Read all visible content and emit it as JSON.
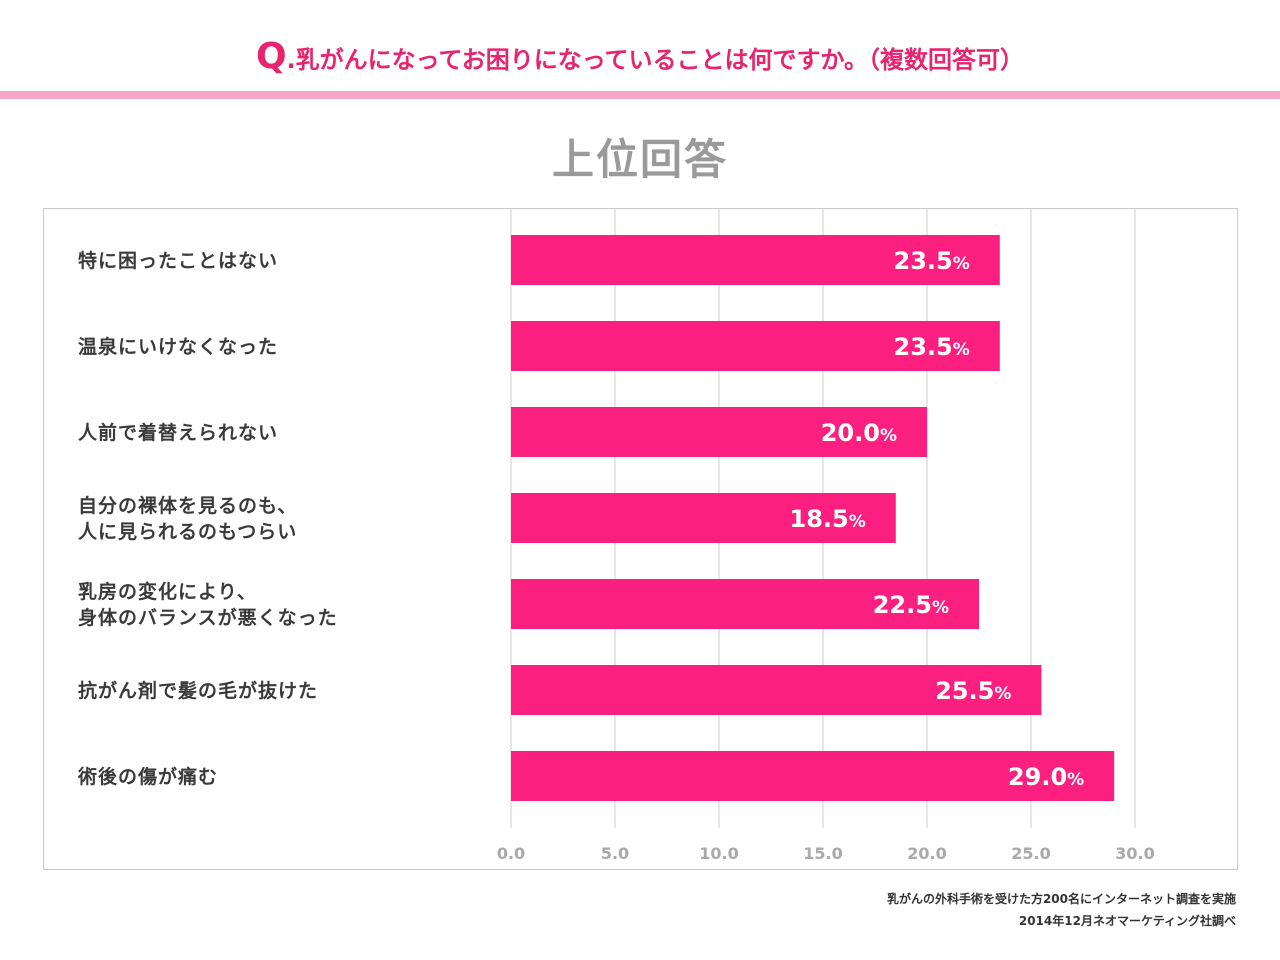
{
  "question": {
    "prefix": "Q",
    "text": ".乳がんになってお困りになっていることは何ですか。（複数回答可）"
  },
  "subtitle": "上位回答",
  "colors": {
    "accent": "#e8246f",
    "bar": "#fb1f7f",
    "rule": "#f5a6c8",
    "grid": "#cfcfcf"
  },
  "chart_data": {
    "type": "bar",
    "orientation": "horizontal",
    "categories": [
      [
        "特に困ったことはない"
      ],
      [
        "温泉にいけなくなった"
      ],
      [
        "人前で着替えられない"
      ],
      [
        "自分の裸体を見るのも、",
        "人に見られるのもつらい"
      ],
      [
        "乳房の変化により、",
        "身体のバランスが悪くなった"
      ],
      [
        "抗がん剤で髪の毛が抜けた"
      ],
      [
        "術後の傷が痛む"
      ]
    ],
    "values": [
      23.5,
      23.5,
      20.0,
      18.5,
      22.5,
      25.5,
      29.0
    ],
    "value_unit": "%",
    "xlim": [
      0,
      30
    ],
    "xticks": [
      "0.0",
      "5.0",
      "10.0",
      "15.0",
      "20.0",
      "25.0",
      "30.0"
    ]
  },
  "footnote": [
    "乳がんの外科手術を受けた方200名にインターネット調査を実施",
    "2014年12月ネオマーケティング社調べ"
  ]
}
